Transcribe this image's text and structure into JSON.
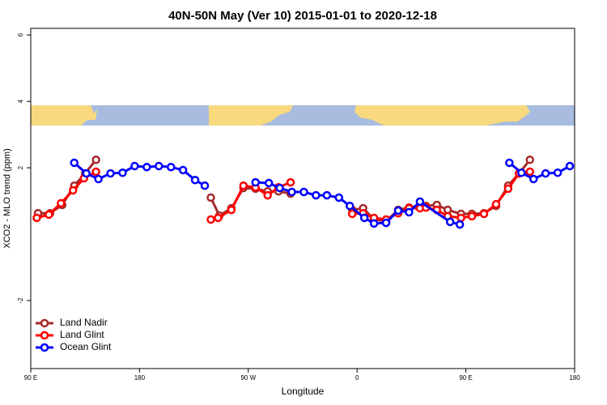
{
  "chart_data": {
    "type": "line",
    "title": "40N-50N May (Ver 10)   2015-01-01 to 2020-12-18",
    "x_label": "Longitude",
    "y_label": "XCO2 - MLO trend (ppm)",
    "xlim": [
      90,
      540
    ],
    "xticks": [
      {
        "value": 90,
        "label": "90 E"
      },
      180,
      {
        "value": 270,
        "label": "90 W"
      },
      {
        "value": 360,
        "label": "0"
      },
      {
        "value": 450,
        "label": "90 E"
      },
      {
        "value": 540,
        "label": "180"
      }
    ],
    "ylim": [
      -4.05,
      6.2
    ],
    "yticks": [
      -2,
      2,
      4,
      6
    ],
    "legend": "bottom-left",
    "series": [
      {
        "name": "Land Nadir",
        "color": "#a52a2a",
        "x": [
          96,
          106,
          116,
          126,
          135,
          144,
          null,
          239,
          246,
          256,
          266,
          276,
          286,
          295,
          305,
          null,
          356,
          365,
          374,
          384,
          394,
          403,
          412,
          417,
          426,
          435,
          446,
          455,
          465,
          475,
          485,
          494,
          503
        ],
        "values": [
          0.63,
          0.63,
          0.88,
          1.46,
          1.83,
          2.24,
          null,
          1.1,
          0.56,
          0.78,
          1.39,
          1.37,
          1.29,
          1.29,
          1.22,
          null,
          0.73,
          0.78,
          0.44,
          0.39,
          0.73,
          0.8,
          0.85,
          0.85,
          0.88,
          0.73,
          0.61,
          0.61,
          0.63,
          0.85,
          1.46,
          1.83,
          2.24
        ]
      },
      {
        "name": "Land Glint",
        "color": "#ff0000",
        "x": [
          95,
          105,
          115,
          125,
          134,
          144,
          null,
          239,
          245,
          256,
          266,
          276,
          286,
          295,
          305,
          null,
          356,
          365,
          374,
          384,
          394,
          403,
          412,
          417,
          426,
          435,
          446,
          455,
          465,
          475,
          485,
          494,
          503
        ],
        "values": [
          0.49,
          0.59,
          0.93,
          1.32,
          1.68,
          1.88,
          null,
          0.44,
          0.49,
          0.73,
          1.46,
          1.41,
          1.17,
          1.41,
          1.56,
          null,
          0.61,
          0.63,
          0.49,
          0.44,
          0.63,
          0.78,
          0.78,
          0.8,
          0.73,
          0.54,
          0.49,
          0.54,
          0.61,
          0.9,
          1.37,
          1.83,
          1.88
        ]
      },
      {
        "name": "Ocean Glint",
        "color": "#0000ff",
        "x": [
          126,
          136,
          146,
          156,
          166,
          176,
          186,
          196,
          206,
          216,
          226,
          234,
          null,
          276,
          287,
          296,
          306,
          316,
          326,
          335,
          345,
          354,
          366,
          374,
          384,
          394,
          403,
          412,
          437,
          445,
          null,
          486,
          496,
          506,
          516,
          526,
          536
        ],
        "values": [
          2.15,
          1.83,
          1.66,
          1.83,
          1.85,
          2.05,
          2.02,
          2.05,
          2.02,
          1.93,
          1.63,
          1.46,
          null,
          1.56,
          1.54,
          1.39,
          1.27,
          1.27,
          1.17,
          1.17,
          1.1,
          0.85,
          0.49,
          0.32,
          0.34,
          0.71,
          0.66,
          0.98,
          0.37,
          0.29,
          null,
          2.15,
          1.85,
          1.66,
          1.83,
          1.85,
          2.05
        ]
      }
    ]
  }
}
